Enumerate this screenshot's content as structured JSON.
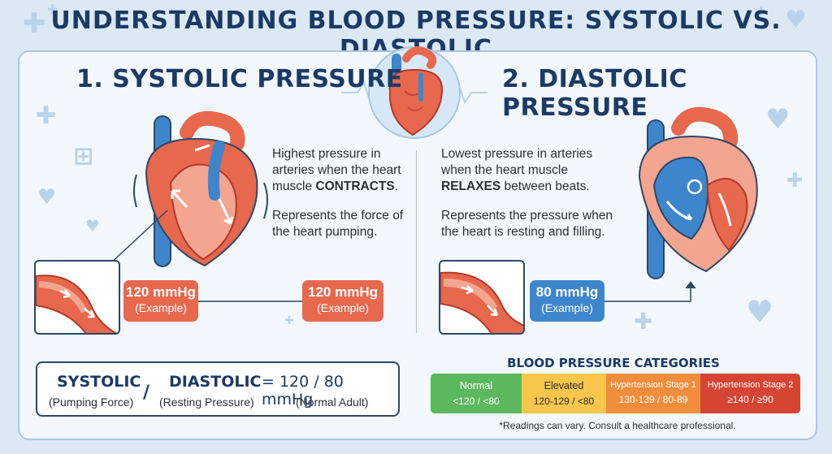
{
  "title": "UNDERSTANDING BLOOD PRESSURE: SYSTOLIC VS. DIASTOLIC",
  "systolic": {
    "heading": "1. SYSTOLIC PRESSURE",
    "desc_line1": "Highest pressure in",
    "desc_line2": "arteries when the heart",
    "desc_line3_pre": "muscle ",
    "desc_line3_bold": "CONTRACTS",
    "desc_line3_post": ".",
    "desc2_line1": "Represents the force of",
    "desc2_line2": "the heart pumping.",
    "pill1_value": "120 mmHg",
    "pill1_sub": "(Example)",
    "pill2_value": "120 mmHg",
    "pill2_sub": "(Example)"
  },
  "diastolic": {
    "heading": "2. DIASTOLIC PRESSURE",
    "desc_line1": "Lowest pressure in arteries",
    "desc_line2": "when the heart muscle",
    "desc_line3_bold": "RELAXES",
    "desc_line3_post": " between beats.",
    "desc2_line1": "Represents the pressure when",
    "desc2_line2": "the heart is resting and filling.",
    "pill_value": "80 mmHg",
    "pill_sub": "(Example)"
  },
  "formula": {
    "systolic_label": "SYSTOLIC",
    "systolic_sub": "(Pumping Force)",
    "slash": "/",
    "diastolic_label": "DIASTOLIC",
    "diastolic_sub": "(Resting Pressure)",
    "result": "= 120 / 80 mmHg",
    "result_sub": "(Normal Adult)"
  },
  "categories": {
    "title": "BLOOD PRESSURE CATEGORIES",
    "items": [
      {
        "name": "Normal",
        "range": "<120 / <80",
        "color": "#5cb85c"
      },
      {
        "name": "Elevated",
        "range": "120-129 / <80",
        "color": "#f7c64a"
      },
      {
        "name": "Hypertension Stage 1",
        "range": "130-139 / 80-89",
        "color": "#f08d3c"
      },
      {
        "name": "Hypertension Stage 2",
        "range": "≥140 / ≥90",
        "color": "#d64533"
      }
    ],
    "footnote": "*Readings can vary. Consult a healthcare professional."
  },
  "colors": {
    "artery_red": "#e8684d",
    "vein_blue": "#3e86cc",
    "navy": "#1b3a66"
  }
}
